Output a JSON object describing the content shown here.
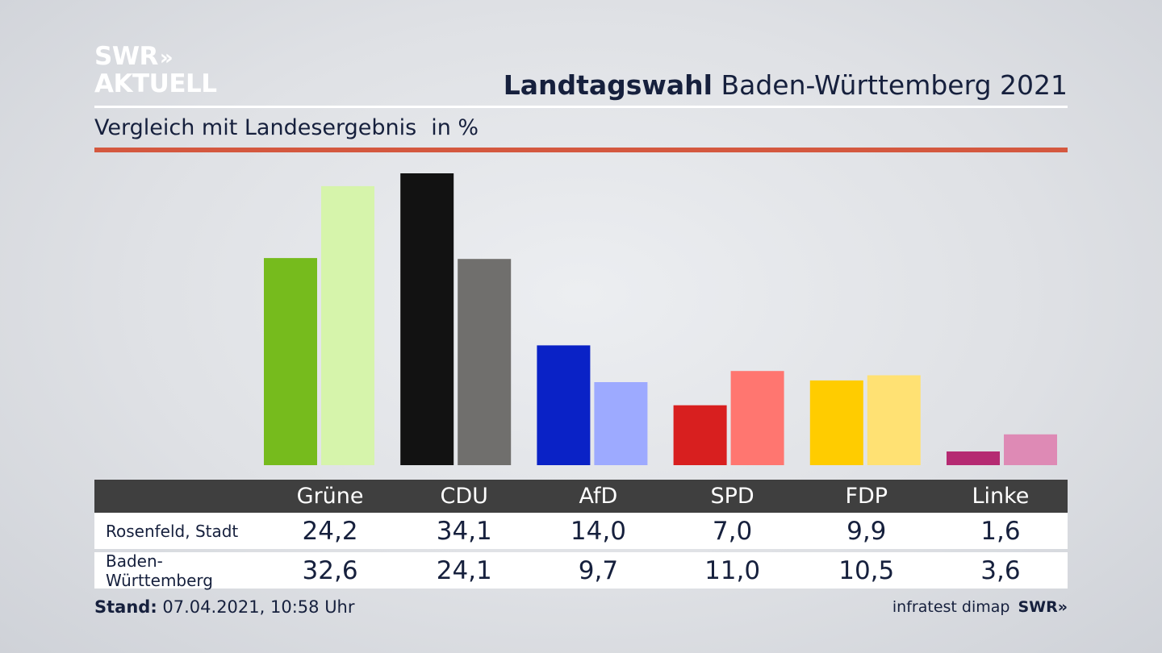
{
  "logo": {
    "line1": "SWR",
    "line1_chevrons": "»",
    "line2": "AKTUELL"
  },
  "header": {
    "title_bold": "Landtagswahl",
    "title_rest": "Baden-Württemberg 2021"
  },
  "subtitle": {
    "text": "Vergleich mit Landesergebnis",
    "unit": "in %"
  },
  "colors": {
    "accent_rule": "#d4583f",
    "table_header_bg": "#3f3f3f"
  },
  "chart_data": {
    "type": "bar",
    "title": "Landtagswahl Baden-Württemberg 2021",
    "subtitle": "Vergleich mit Landesergebnis",
    "unit": "in %",
    "categories": [
      "Grüne",
      "CDU",
      "AfD",
      "SPD",
      "FDP",
      "Linke"
    ],
    "series": [
      {
        "name": "Rosenfeld, Stadt",
        "values": [
          24.2,
          34.1,
          14.0,
          7.0,
          9.9,
          1.6
        ],
        "labels": [
          "24,2",
          "34,1",
          "14,0",
          "7,0",
          "9,9",
          "1,6"
        ],
        "colors": [
          "#76bb1d",
          "#121212",
          "#0a22c6",
          "#d81f1f",
          "#ffcc00",
          "#b52a72"
        ]
      },
      {
        "name": "Baden-Württemberg",
        "values": [
          32.6,
          24.1,
          9.7,
          11.0,
          10.5,
          3.6
        ],
        "labels": [
          "32,6",
          "24,1",
          "9,7",
          "11,0",
          "10,5",
          "3,6"
        ],
        "colors": [
          "#d6f4ab",
          "#706f6d",
          "#9daaff",
          "#ff7670",
          "#ffe173",
          "#de8ab5"
        ]
      }
    ],
    "ylim": [
      0,
      34.1
    ],
    "grid": false,
    "legend": "table-below"
  },
  "footer": {
    "stand_label": "Stand:",
    "stand_value": "07.04.2021, 10:58 Uhr",
    "source": "infratest dimap",
    "brand": "SWR»"
  }
}
